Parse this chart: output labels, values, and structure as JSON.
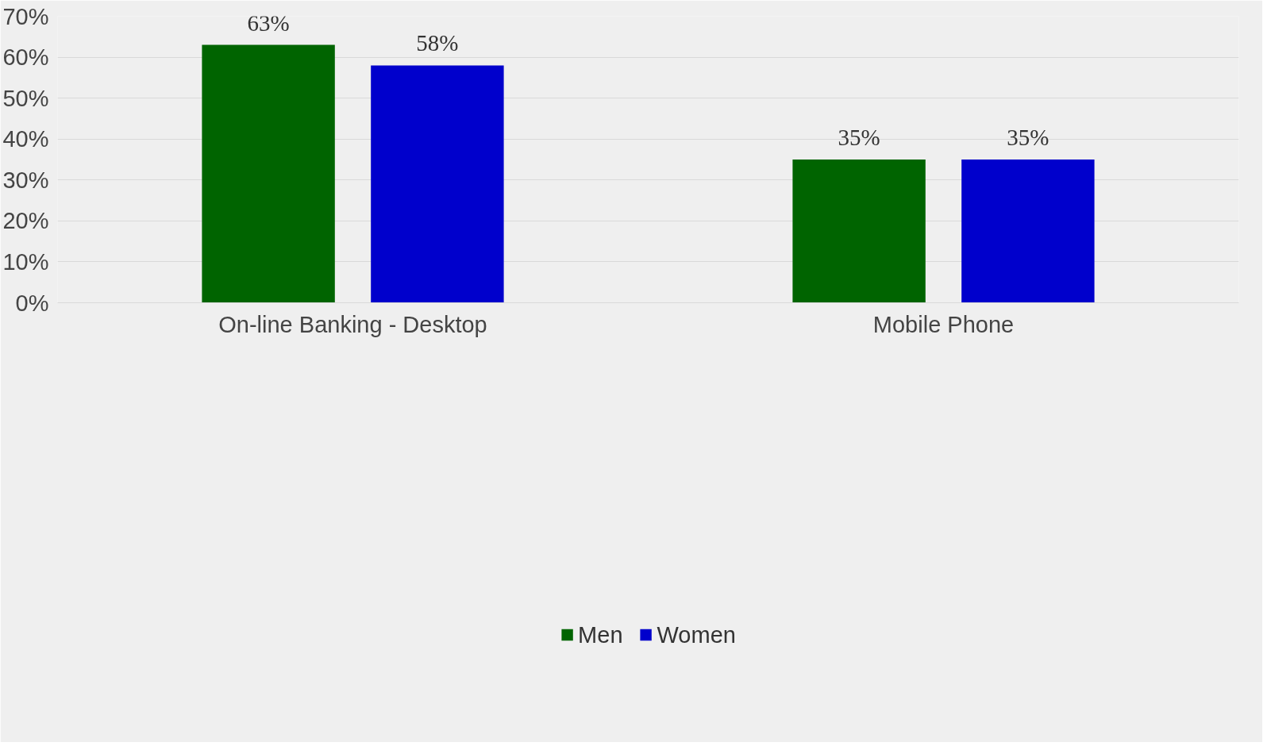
{
  "chart_data": {
    "type": "bar",
    "categories": [
      "On-line Banking - Desktop",
      "Mobile Phone"
    ],
    "series": [
      {
        "name": "Men",
        "color": "#006400",
        "values": [
          63,
          35
        ],
        "value_labels": [
          "63%",
          "35%"
        ]
      },
      {
        "name": "Women",
        "color": "#0000cc",
        "values": [
          58,
          35
        ],
        "value_labels": [
          "58%",
          "35%"
        ]
      }
    ],
    "ylim": [
      0,
      70
    ],
    "yticks": [
      {
        "value": 0,
        "label": "0%"
      },
      {
        "value": 10,
        "label": "10%"
      },
      {
        "value": 20,
        "label": "20%"
      },
      {
        "value": 30,
        "label": "30%"
      },
      {
        "value": 40,
        "label": "40%"
      },
      {
        "value": 50,
        "label": "50%"
      },
      {
        "value": 60,
        "label": "60%"
      },
      {
        "value": 70,
        "label": "70%"
      }
    ],
    "grid": "y",
    "legend": "bottom"
  }
}
